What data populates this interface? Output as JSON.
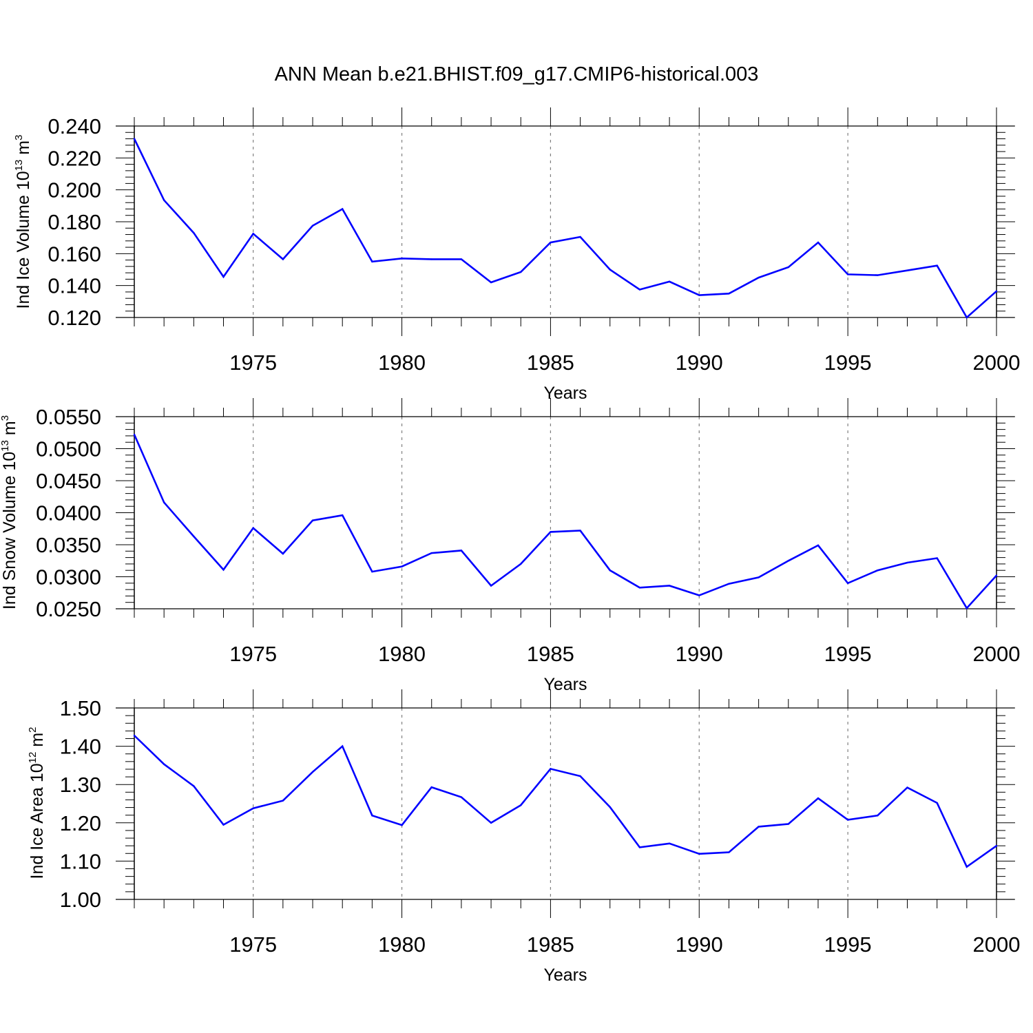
{
  "title": "ANN Mean b.e21.BHIST.f09_g17.CMIP6-historical.003",
  "colors": {
    "line": "#0000ff",
    "axis": "#000000",
    "grid": "#7f7f7f"
  },
  "chart_data": [
    {
      "type": "line",
      "ylabel_main": "Ind Ice Volume 10",
      "ylabel_sup": "13",
      "ylabel_unit": "m",
      "ylabel_unit_sup": "3",
      "xlabel": "Years",
      "xlim": [
        1971,
        2000
      ],
      "ylim": [
        0.12,
        0.24
      ],
      "yticks": [
        0.12,
        0.14,
        0.16,
        0.18,
        0.2,
        0.22,
        0.24
      ],
      "ytick_labels": [
        "0.120",
        "0.140",
        "0.160",
        "0.180",
        "0.200",
        "0.220",
        "0.240"
      ],
      "xticks": [
        1975,
        1980,
        1985,
        1990,
        1995,
        2000
      ],
      "xtick_labels": [
        "1975",
        "1980",
        "1985",
        "1990",
        "1995",
        "2000"
      ],
      "grid": "vertical dashed at major x ticks",
      "x": [
        1971,
        1972,
        1973,
        1974,
        1975,
        1976,
        1977,
        1978,
        1979,
        1980,
        1981,
        1982,
        1983,
        1984,
        1985,
        1986,
        1987,
        1988,
        1989,
        1990,
        1991,
        1992,
        1993,
        1994,
        1995,
        1996,
        1997,
        1998,
        1999,
        2000
      ],
      "values": [
        0.232,
        0.1935,
        0.173,
        0.1455,
        0.1725,
        0.1565,
        0.1775,
        0.188,
        0.155,
        0.157,
        0.1565,
        0.1565,
        0.142,
        0.1485,
        0.167,
        0.1705,
        0.15,
        0.1375,
        0.1425,
        0.134,
        0.135,
        0.145,
        0.1515,
        0.167,
        0.147,
        0.1465,
        0.1495,
        0.1525,
        0.12,
        0.1365
      ]
    },
    {
      "type": "line",
      "ylabel_main": "Ind Snow Volume 10",
      "ylabel_sup": "13",
      "ylabel_unit": "m",
      "ylabel_unit_sup": "3",
      "xlabel": "Years",
      "xlim": [
        1971,
        2000
      ],
      "ylim": [
        0.025,
        0.055
      ],
      "yticks": [
        0.025,
        0.03,
        0.035,
        0.04,
        0.045,
        0.05,
        0.055
      ],
      "ytick_labels": [
        "0.0250",
        "0.0300",
        "0.0350",
        "0.0400",
        "0.0450",
        "0.0500",
        "0.0550"
      ],
      "xticks": [
        1975,
        1980,
        1985,
        1990,
        1995,
        2000
      ],
      "xtick_labels": [
        "1975",
        "1980",
        "1985",
        "1990",
        "1995",
        "2000"
      ],
      "grid": "vertical dashed at major x ticks",
      "x": [
        1971,
        1972,
        1973,
        1974,
        1975,
        1976,
        1977,
        1978,
        1979,
        1980,
        1981,
        1982,
        1983,
        1984,
        1985,
        1986,
        1987,
        1988,
        1989,
        1990,
        1991,
        1992,
        1993,
        1994,
        1995,
        1996,
        1997,
        1998,
        1999,
        2000
      ],
      "values": [
        0.0522,
        0.0416,
        0.0363,
        0.0311,
        0.0376,
        0.0336,
        0.0388,
        0.0396,
        0.0308,
        0.0316,
        0.0337,
        0.0341,
        0.0286,
        0.032,
        0.037,
        0.0372,
        0.031,
        0.0283,
        0.0286,
        0.0271,
        0.0289,
        0.0299,
        0.0325,
        0.0349,
        0.029,
        0.031,
        0.0322,
        0.0329,
        0.0251,
        0.0302
      ]
    },
    {
      "type": "line",
      "ylabel_main": "Ind Ice Area 10",
      "ylabel_sup": "12",
      "ylabel_unit": "m",
      "ylabel_unit_sup": "2",
      "xlabel": "Years",
      "xlim": [
        1971,
        2000
      ],
      "ylim": [
        1.0,
        1.5
      ],
      "yticks": [
        1.0,
        1.1,
        1.2,
        1.3,
        1.4,
        1.5
      ],
      "ytick_labels": [
        "1.00",
        "1.10",
        "1.20",
        "1.30",
        "1.40",
        "1.50"
      ],
      "xticks": [
        1975,
        1980,
        1985,
        1990,
        1995,
        2000
      ],
      "xtick_labels": [
        "1975",
        "1980",
        "1985",
        "1990",
        "1995",
        "2000"
      ],
      "grid": "vertical dashed at major x ticks",
      "x": [
        1971,
        1972,
        1973,
        1974,
        1975,
        1976,
        1977,
        1978,
        1979,
        1980,
        1981,
        1982,
        1983,
        1984,
        1985,
        1986,
        1987,
        1988,
        1989,
        1990,
        1991,
        1992,
        1993,
        1994,
        1995,
        1996,
        1997,
        1998,
        1999,
        2000
      ],
      "values": [
        1.428,
        1.353,
        1.296,
        1.195,
        1.238,
        1.258,
        1.333,
        1.4,
        1.219,
        1.194,
        1.293,
        1.267,
        1.2,
        1.246,
        1.341,
        1.322,
        1.241,
        1.136,
        1.146,
        1.119,
        1.123,
        1.19,
        1.197,
        1.264,
        1.208,
        1.219,
        1.292,
        1.252,
        1.085,
        1.14
      ]
    }
  ]
}
